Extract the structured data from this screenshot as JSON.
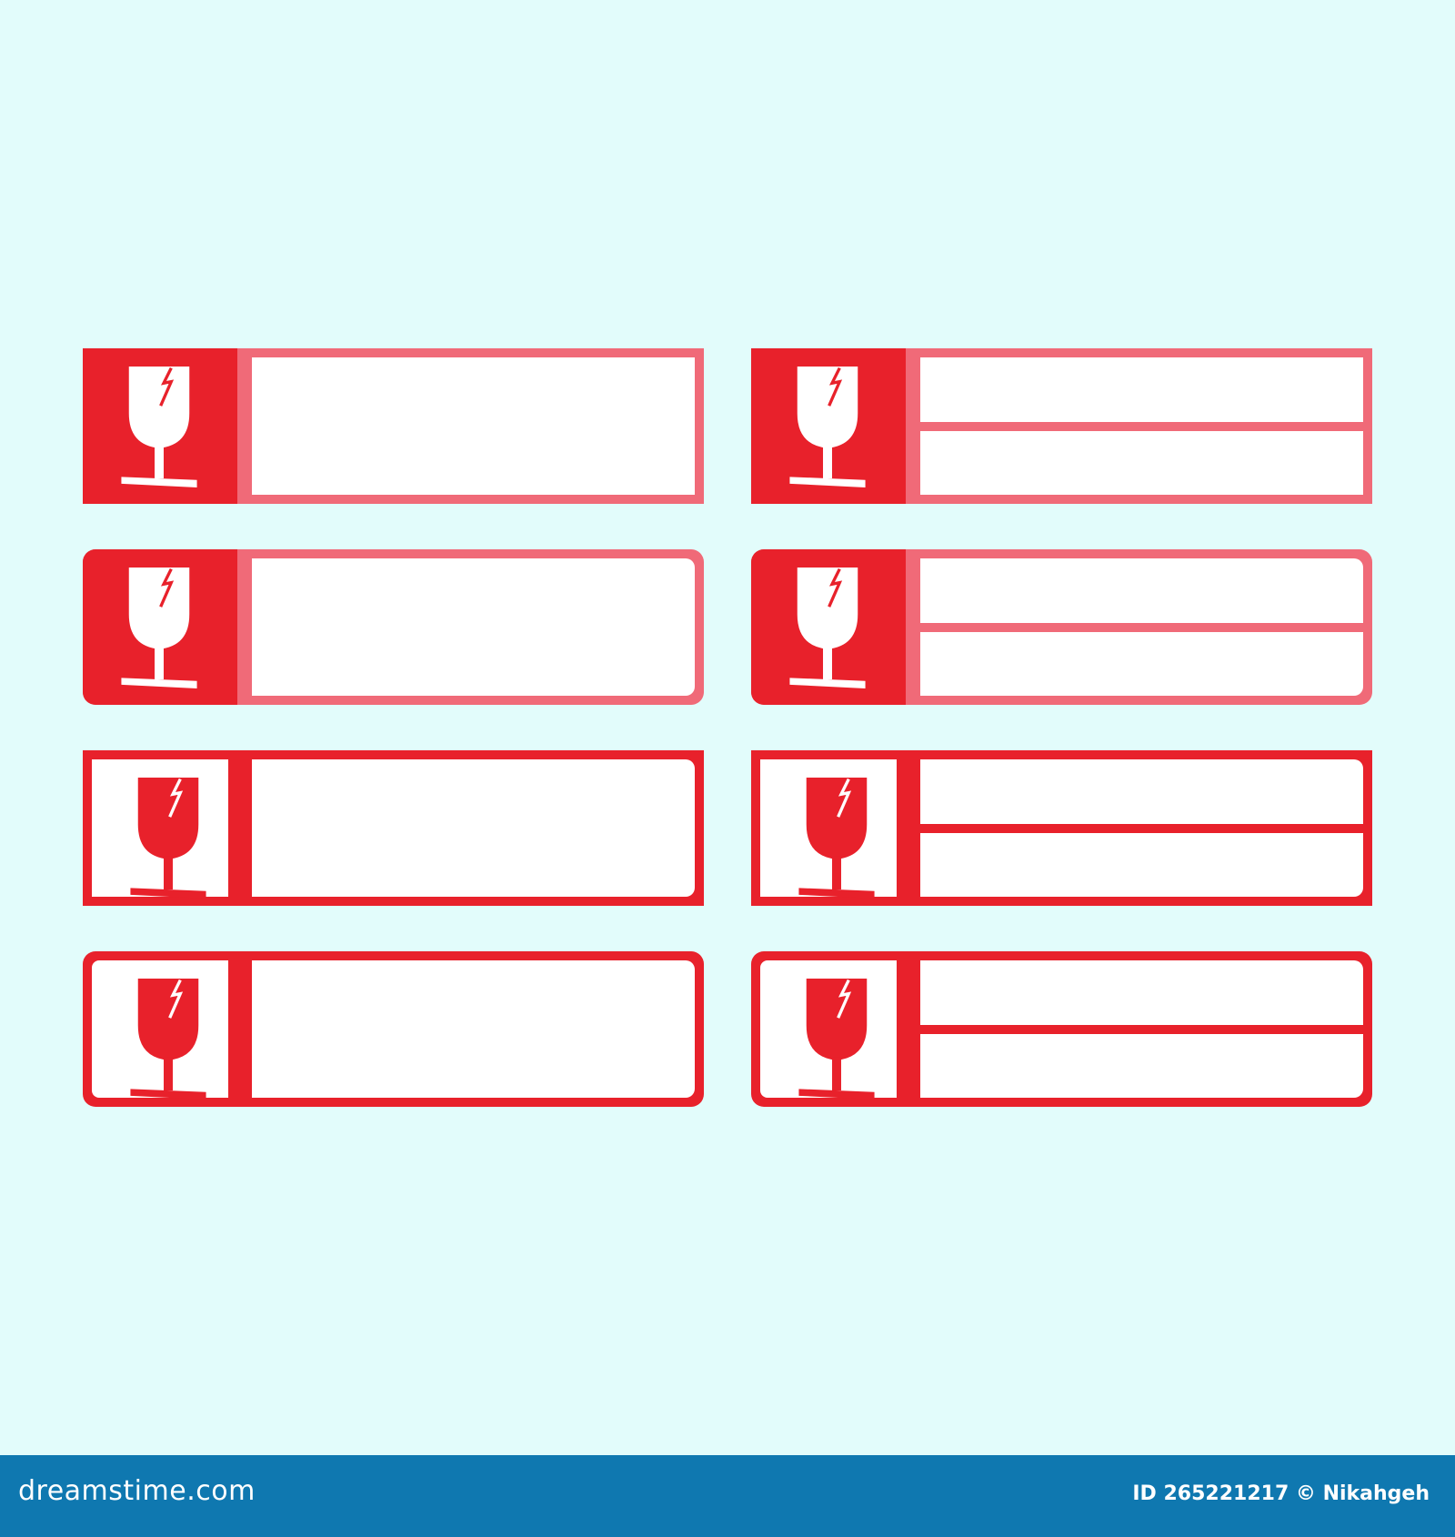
{
  "colors": {
    "background": "#e2fcfb",
    "red": "#e8212b",
    "pink": "#f06a78",
    "footer": "#0f78b0"
  },
  "labels": [
    {
      "style": "filled",
      "corners": "square",
      "lines": 1,
      "icon": "fragile-glass-icon"
    },
    {
      "style": "filled",
      "corners": "square",
      "lines": 2,
      "icon": "fragile-glass-icon"
    },
    {
      "style": "filled",
      "corners": "rounded",
      "lines": 1,
      "icon": "fragile-glass-icon"
    },
    {
      "style": "filled",
      "corners": "rounded",
      "lines": 2,
      "icon": "fragile-glass-icon"
    },
    {
      "style": "outline",
      "corners": "square",
      "lines": 1,
      "icon": "fragile-glass-icon"
    },
    {
      "style": "outline",
      "corners": "square",
      "lines": 2,
      "icon": "fragile-glass-icon"
    },
    {
      "style": "outline",
      "corners": "rounded",
      "lines": 1,
      "icon": "fragile-glass-icon"
    },
    {
      "style": "outline",
      "corners": "rounded",
      "lines": 2,
      "icon": "fragile-glass-icon"
    }
  ],
  "footer": {
    "brand": "dreamstime.com",
    "credit": "ID 265221217 © Nikahgeh"
  }
}
